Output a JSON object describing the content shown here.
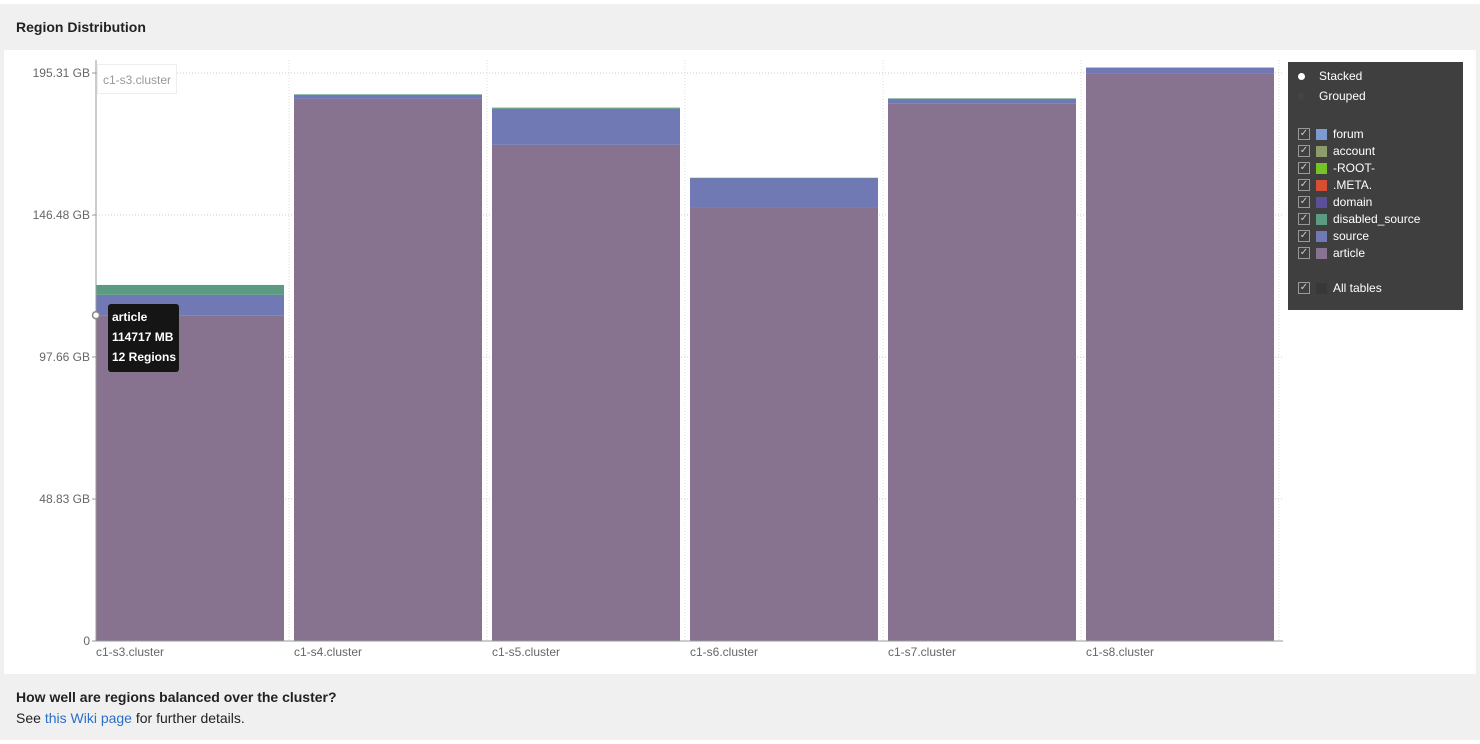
{
  "header": {
    "title": "Region Distribution"
  },
  "footer": {
    "question": "How well are regions balanced over the cluster?",
    "see": "See ",
    "link": "this Wiki page",
    "rest": " for further details."
  },
  "legend": {
    "modes": [
      {
        "label": "Stacked",
        "selected": true
      },
      {
        "label": "Grouped",
        "selected": false
      }
    ],
    "tables": [
      {
        "label": "forum",
        "color": "#7b9bd1",
        "checked": true
      },
      {
        "label": "account",
        "color": "#8e9c6d",
        "checked": true
      },
      {
        "label": "-ROOT-",
        "color": "#76c326",
        "checked": true
      },
      {
        "label": ".META.",
        "color": "#d64f35",
        "checked": true
      },
      {
        "label": "domain",
        "color": "#5b4f9a",
        "checked": true
      },
      {
        "label": "disabled_source",
        "color": "#5a9b82",
        "checked": true
      },
      {
        "label": "source",
        "color": "#7179b5",
        "checked": true
      },
      {
        "label": "article",
        "color": "#87738f",
        "checked": true
      }
    ],
    "all_label": "All tables",
    "all_checked": true
  },
  "annotation": "c1-s3.cluster",
  "tooltip": {
    "series": "article",
    "value": "114717 MB",
    "regions": "12 Regions"
  },
  "chart_data": {
    "type": "bar",
    "stacked": true,
    "grid": true,
    "legend_position": "right",
    "categories": [
      "c1-s3.cluster",
      "c1-s4.cluster",
      "c1-s5.cluster",
      "c1-s6.cluster",
      "c1-s7.cluster",
      "c1-s8.cluster"
    ],
    "ylim": [
      0,
      195.31
    ],
    "yticks": [
      "0",
      "48.83 GB",
      "97.66 GB",
      "146.48 GB",
      "195.31 GB"
    ],
    "ytick_values": [
      0,
      48.83,
      97.66,
      146.48,
      195.31
    ],
    "unit": "GB",
    "series": [
      {
        "name": "article",
        "color": "#87738f",
        "values": [
          112.03,
          186.4,
          170.6,
          148.9,
          184.7,
          195.0
        ]
      },
      {
        "name": "source",
        "color": "#7179b5",
        "values": [
          7.0,
          1.4,
          12.4,
          10.3,
          1.7,
          2.1
        ]
      },
      {
        "name": "disabled_source",
        "color": "#5a9b82",
        "values": [
          3.4,
          0.2,
          0.4,
          0.1,
          0.2,
          0.1
        ]
      }
    ]
  }
}
